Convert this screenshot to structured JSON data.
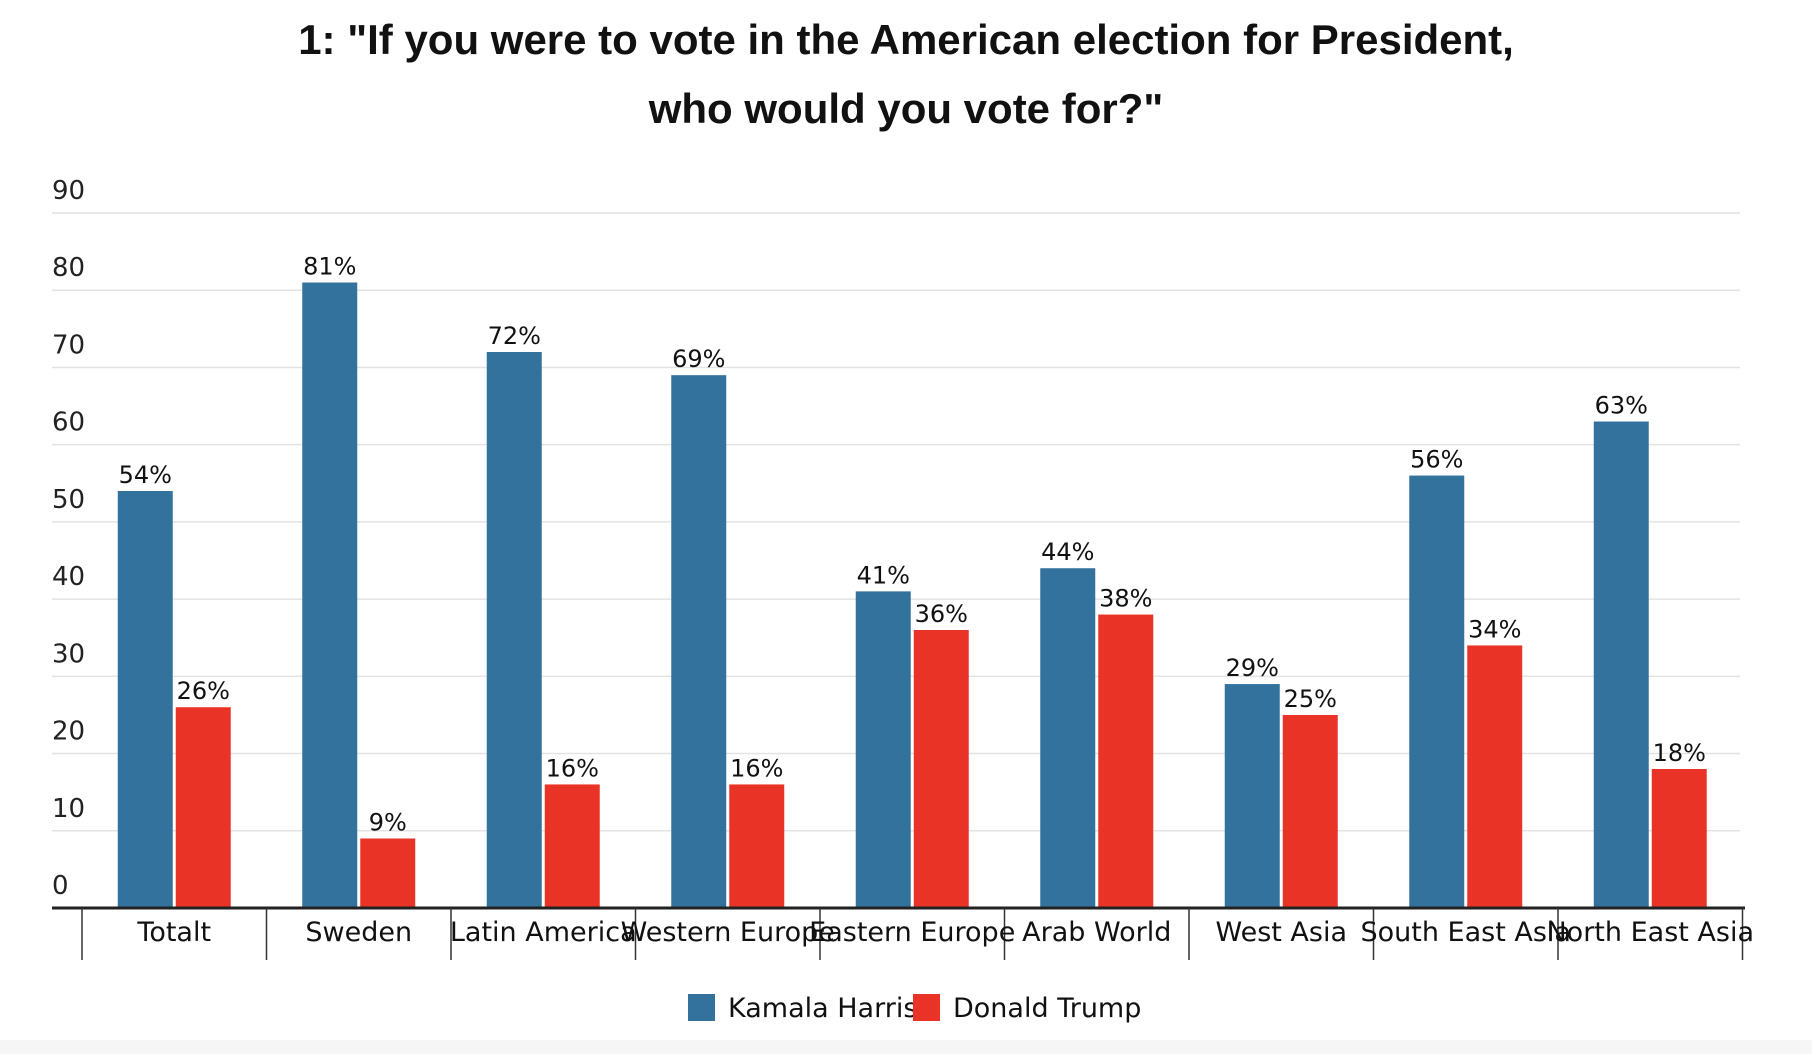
{
  "chart_data": {
    "type": "bar",
    "title": "1: \"If you were to vote in the American election for President, who would you vote for?\"",
    "title_lines": [
      "1: \"If you were to vote in the American election for President,",
      "who would you vote for?\""
    ],
    "categories": [
      "Totalt",
      "Sweden",
      "Latin America",
      "Western Europe",
      "Eastern Europe",
      "Arab World",
      "West Asia",
      "South East Asia",
      "North East Asia"
    ],
    "series": [
      {
        "name": "Kamala Harris",
        "color": "#34729e",
        "values": [
          54,
          81,
          72,
          69,
          41,
          44,
          29,
          56,
          63
        ],
        "labels": [
          "54%",
          "81%",
          "72%",
          "69%",
          "41%",
          "44%",
          "29%",
          "56%",
          "63%"
        ]
      },
      {
        "name": "Donald Trump",
        "color": "#e83326",
        "values": [
          26,
          9,
          16,
          16,
          36,
          38,
          25,
          34,
          18
        ],
        "labels": [
          "26%",
          "9%",
          "16%",
          "16%",
          "36%",
          "38%",
          "25%",
          "34%",
          "18%"
        ]
      }
    ],
    "y_ticks": [
      "0",
      "10",
      "20",
      "30",
      "40",
      "50",
      "60",
      "70",
      "80",
      "90"
    ],
    "ylim": [
      0,
      90
    ],
    "xlabel": "",
    "ylabel": "",
    "grid": true,
    "legend_position": "bottom-center"
  }
}
